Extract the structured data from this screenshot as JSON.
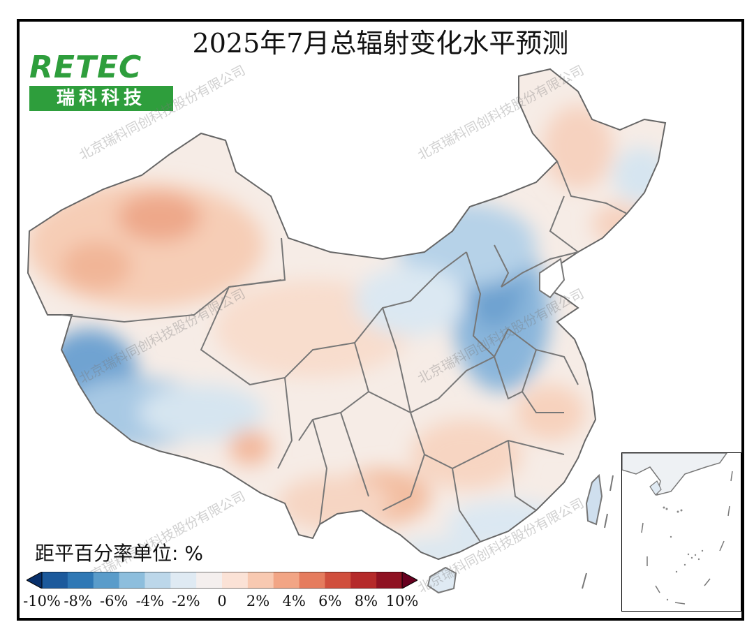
{
  "title": "2025年7月总辐射变化水平预测",
  "logo": {
    "text": "RETEC",
    "subtitle": "瑞科科技"
  },
  "watermark": "北京瑞科同创科技股份有限公司",
  "legend": {
    "unit_label": "距平百分率单位: %",
    "ticks": [
      "-10%",
      "-8%",
      "-6%",
      "-4%",
      "-2%",
      "0",
      "2%",
      "4%",
      "6%",
      "8%",
      "10%"
    ],
    "colors": [
      "#08306b",
      "#1c5a9c",
      "#2f78b5",
      "#5a9cca",
      "#8dbedd",
      "#bcd7ea",
      "#dfeaf3",
      "#f4efee",
      "#fbe2d6",
      "#f8c9b1",
      "#f2a585",
      "#e57c5e",
      "#d04f3d",
      "#b52a2a",
      "#8f1222",
      "#67001f"
    ]
  },
  "colors": {
    "frame": "#000000",
    "logo_green": "#2e9e3c",
    "border_line": "#777777"
  }
}
